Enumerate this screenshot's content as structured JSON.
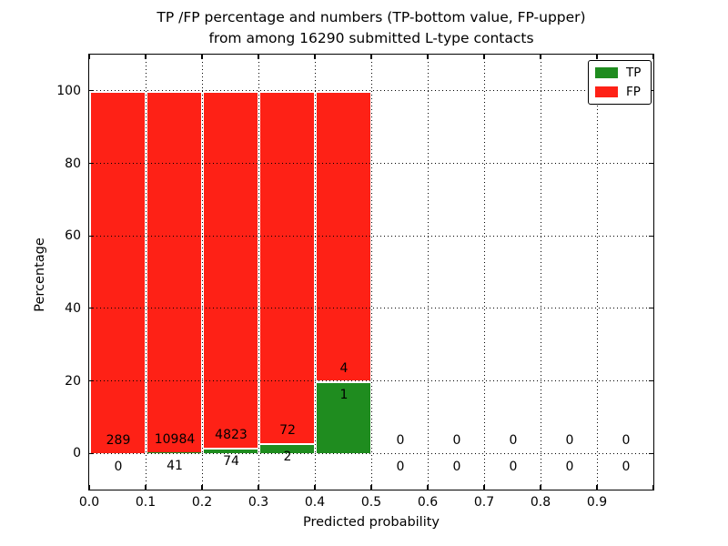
{
  "figure": {
    "title_line1": "TP /FP percentage and numbers (TP-bottom value, FP-upper)",
    "title_line2": "from among 16290 submitted L-type contacts"
  },
  "chart_data": {
    "type": "bar",
    "stacked": true,
    "title": "TP /FP percentage and numbers (TP-bottom value, FP-upper) from among 16290 submitted L-type contacts",
    "xlabel": "Predicted probability",
    "ylabel": "Percentage",
    "total_submitted": 16290,
    "bin_edges": [
      0.0,
      0.1,
      0.2,
      0.3,
      0.4,
      0.5,
      0.6,
      0.7,
      0.8,
      0.9,
      1.0
    ],
    "x_tick_labels": [
      "0.0",
      "0.1",
      "0.2",
      "0.3",
      "0.4",
      "0.5",
      "0.6",
      "0.7",
      "0.8",
      "0.9"
    ],
    "y_ticks": [
      0,
      20,
      40,
      60,
      80,
      100
    ],
    "xlim": [
      0,
      1.0
    ],
    "ylim": [
      -10,
      110
    ],
    "grid": true,
    "grid_style": "dotted",
    "series": [
      {
        "name": "TP",
        "color": "#1f8c1f",
        "counts": [
          0,
          41,
          74,
          2,
          1,
          0,
          0,
          0,
          0,
          0
        ],
        "percent": [
          0,
          0.37,
          1.51,
          2.7,
          20.0,
          0,
          0,
          0,
          0,
          0
        ]
      },
      {
        "name": "FP",
        "color": "#fe2116",
        "counts": [
          289,
          10984,
          4823,
          72,
          4,
          0,
          0,
          0,
          0,
          0
        ],
        "percent": [
          100,
          99.63,
          98.49,
          97.3,
          80.0,
          0,
          0,
          0,
          0,
          0
        ]
      }
    ],
    "bar_value_labels": {
      "fp": [
        "289",
        "10984",
        "4823",
        "72",
        "4",
        "0",
        "0",
        "0",
        "0",
        "0"
      ],
      "tp": [
        "0",
        "41",
        "74",
        "2",
        "1",
        "0",
        "0",
        "0",
        "0",
        "0"
      ]
    },
    "legend": {
      "position": "upper right",
      "entries": [
        {
          "label": "TP",
          "color": "#1f8c1f"
        },
        {
          "label": "FP",
          "color": "#fe2116"
        }
      ]
    }
  }
}
